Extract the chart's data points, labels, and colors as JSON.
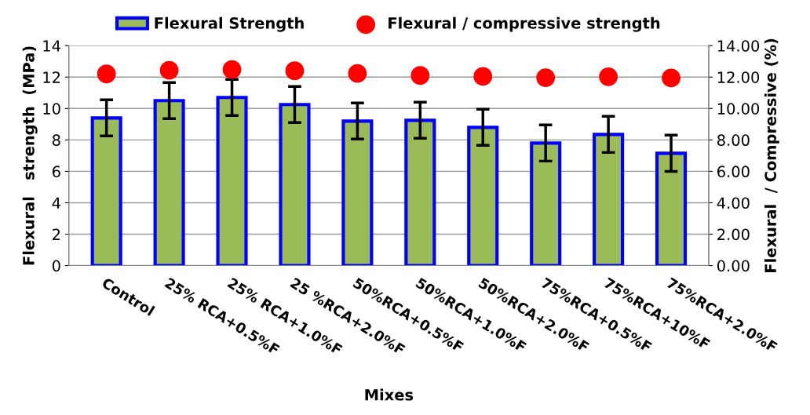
{
  "chart_data": {
    "type": "bar",
    "xlabel": "Mixes",
    "ylabel": "Flexural   strength  (MPa)",
    "y2label": "Flexural  / Compressive (%)",
    "categories": [
      "Control",
      "25% RCA+0.5%F",
      "25% RCA+1.0%F",
      "25 %RCA+2.0%F",
      "50%RCA+0.5%F",
      "50%RCA+1.0%F",
      "50%RCA+2.0%F",
      "75%RCA+0.5%F",
      "75%RCA+10%F",
      "75%RCA+2.0%F"
    ],
    "series": [
      {
        "name": "Flexural Strength",
        "color": "#9bbb59",
        "values": [
          9.4,
          10.5,
          10.7,
          10.25,
          9.2,
          9.25,
          8.8,
          7.8,
          8.35,
          7.15
        ],
        "errors": [
          1.15,
          1.15,
          1.15,
          1.15,
          1.15,
          1.15,
          1.15,
          1.15,
          1.15,
          1.15
        ]
      },
      {
        "name": "Flexural / compressive strength",
        "type": "scatter",
        "axis": "y2",
        "color": "#ff0000",
        "marker": "circle",
        "values": [
          12.2,
          12.43,
          12.48,
          12.4,
          12.23,
          12.1,
          12.04,
          11.96,
          12.02,
          11.94
        ]
      }
    ],
    "ylim": [
      0,
      14
    ],
    "yticks": [
      0,
      2,
      4,
      6,
      8,
      10,
      12,
      14
    ],
    "y2lim": [
      0,
      14
    ],
    "y2ticks": [
      {
        "value": 0,
        "label": "0.00"
      },
      {
        "value": 2,
        "label": "2.00"
      },
      {
        "value": 4,
        "label": "4.00"
      },
      {
        "value": 6,
        "label": "6.00"
      },
      {
        "value": 8,
        "label": "8.00"
      },
      {
        "value": 10,
        "label": "10.00"
      },
      {
        "value": 12,
        "label": "12.00"
      },
      {
        "value": 14,
        "label": "14.00"
      }
    ],
    "grid": "y",
    "legend": "top"
  }
}
